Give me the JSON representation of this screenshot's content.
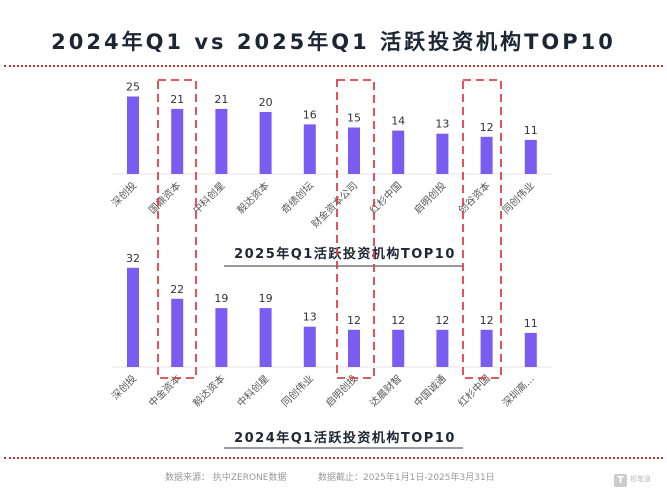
{
  "header": {
    "title": "2024年Q1 vs 2025年Q1 活跃投资机构TOP10"
  },
  "chart_data": [
    {
      "type": "bar",
      "title": "2025年Q1活跃投资机构TOP10",
      "categories": [
        "深创投",
        "国鼎资本",
        "中科创星",
        "毅达资本",
        "奇绩创坛",
        "财金资本公司",
        "红杉中国",
        "启明创投",
        "创谷资本",
        "同创伟业"
      ],
      "values": [
        25,
        21,
        21,
        20,
        16,
        15,
        14,
        13,
        12,
        11
      ],
      "color": "#7b5cf0",
      "ylim": [
        0,
        32
      ]
    },
    {
      "type": "bar",
      "title": "2024年Q1活跃投资机构TOP10",
      "categories": [
        "深创投",
        "中金资本",
        "毅达资本",
        "中科创星",
        "同创伟业",
        "启明创投",
        "达晨财智",
        "中国诚通",
        "红杉中国",
        "深圳高…"
      ],
      "values": [
        32,
        22,
        19,
        19,
        13,
        12,
        12,
        12,
        12,
        11
      ],
      "color": "#7b5cf0",
      "ylim": [
        0,
        32
      ]
    }
  ],
  "highlight_color": "#e0404a",
  "footer": {
    "source": "数据来源：  执中ZERONE数据",
    "period": "数据截止：2025年1月1日-2025年3月31日"
  },
  "logo": {
    "text": "铅笔道"
  }
}
